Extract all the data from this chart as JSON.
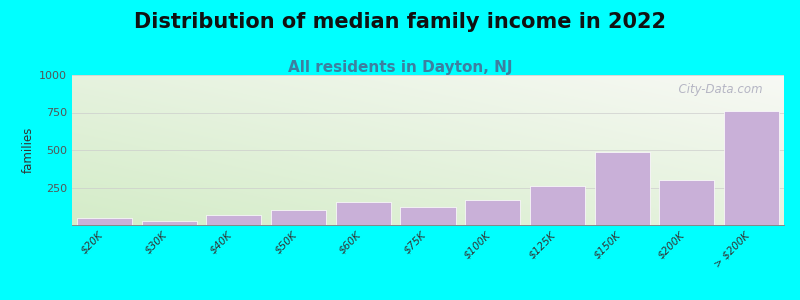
{
  "title": "Distribution of median family income in 2022",
  "subtitle": "All residents in Dayton, NJ",
  "ylabel": "families",
  "categories": [
    "$20K",
    "$30K",
    "$40K",
    "$50K",
    "$60K",
    "$75K",
    "$100K",
    "$125K",
    "$150K",
    "$200K",
    "> $200K"
  ],
  "values": [
    47,
    25,
    70,
    100,
    155,
    120,
    165,
    260,
    490,
    300,
    760
  ],
  "bar_color": "#c9b0d8",
  "ylim": [
    0,
    1000
  ],
  "yticks": [
    0,
    250,
    500,
    750,
    1000
  ],
  "background_color": "#00ffff",
  "title_fontsize": 15,
  "subtitle_fontsize": 11,
  "subtitle_color": "#3d7fa0",
  "watermark_text": "  City-Data.com",
  "watermark_color": "#aaaabc",
  "grid_color": "#cccccc"
}
